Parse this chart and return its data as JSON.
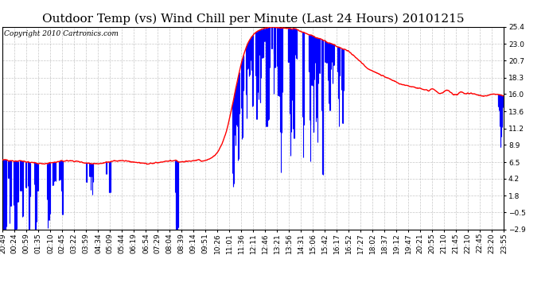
{
  "title": "Outdoor Temp (vs) Wind Chill per Minute (Last 24 Hours) 20101215",
  "copyright_text": "Copyright 2010 Cartronics.com",
  "yticks": [
    25.4,
    23.0,
    20.7,
    18.3,
    16.0,
    13.6,
    11.2,
    8.9,
    6.5,
    4.2,
    1.8,
    -0.5,
    -2.9
  ],
  "ymin": -2.9,
  "ymax": 25.4,
  "bg_color": "#ffffff",
  "plot_bg_color": "#ffffff",
  "grid_color": "#b0b0b0",
  "outdoor_temp_color": "red",
  "wind_chill_color": "blue",
  "title_fontsize": 11,
  "copyright_fontsize": 6.5,
  "tick_label_fontsize": 6.5,
  "x_labels": [
    "20:49",
    "00:24",
    "00:59",
    "01:35",
    "02:10",
    "02:45",
    "03:22",
    "03:59",
    "04:34",
    "05:09",
    "05:44",
    "06:19",
    "06:54",
    "07:29",
    "08:04",
    "08:39",
    "09:14",
    "09:51",
    "10:26",
    "11:01",
    "11:36",
    "12:11",
    "12:46",
    "13:21",
    "13:56",
    "14:31",
    "15:06",
    "15:42",
    "16:17",
    "16:52",
    "17:27",
    "18:02",
    "18:37",
    "19:12",
    "19:47",
    "20:21",
    "20:55",
    "21:10",
    "21:45",
    "22:10",
    "22:45",
    "23:20",
    "23:55"
  ]
}
